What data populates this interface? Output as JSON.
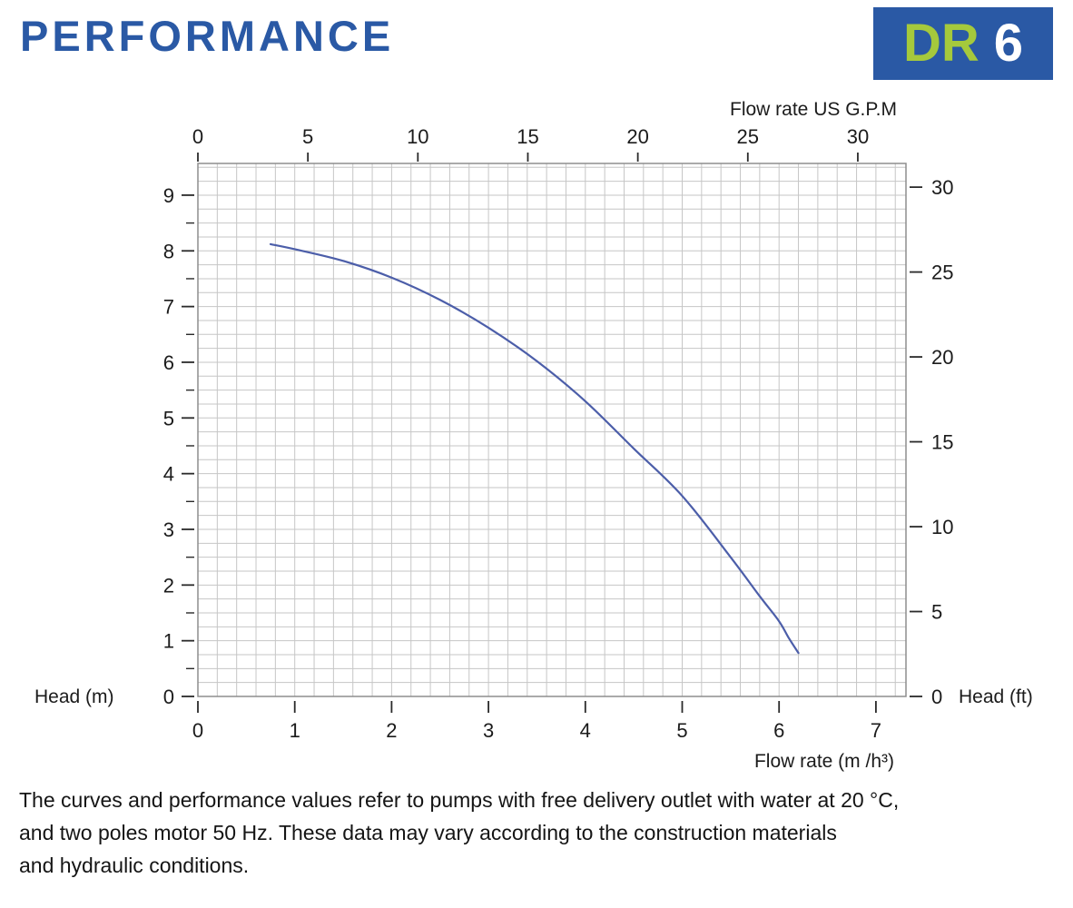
{
  "header": {
    "title": "PERFORMANCE",
    "badge": {
      "model_prefix": "DR",
      "model_number": "6"
    }
  },
  "colors": {
    "title_blue": "#2a59a5",
    "badge_bg": "#2a59a5",
    "badge_prefix_green": "#a5c93c",
    "badge_number_white": "#ffffff",
    "curve_blue": "#4c5ea9",
    "grid_line": "#c6c6c6",
    "plot_border": "#8d8d8d",
    "tick": "#2a2a2a",
    "axis_text": "#1b1b1b"
  },
  "chart_data": {
    "type": "line",
    "title": "PERFORMANCE",
    "grid": true,
    "top_axis": {
      "label": "Flow rate US  G.P.M",
      "unit": "US GPM",
      "ticks": [
        0,
        5,
        10,
        15,
        20,
        25,
        30
      ],
      "gpm_to_m3h": 0.2271
    },
    "bottom_axis": {
      "label": "Flow rate  (m /h³)",
      "unit": "m³/h",
      "ticks": [
        0,
        1,
        2,
        3,
        4,
        5,
        6,
        7
      ]
    },
    "left_axis": {
      "label": "Head (m)",
      "unit": "m",
      "ticks": [
        0,
        1,
        2,
        3,
        4,
        5,
        6,
        7,
        8,
        9
      ],
      "minor_tick_step": 0.5
    },
    "right_axis": {
      "label": "Head (ft)",
      "unit": "ft",
      "ticks": [
        0,
        5,
        10,
        15,
        20,
        25,
        30
      ],
      "ft_to_m": 0.3048
    },
    "xlim": [
      0,
      7.31
    ],
    "ylim": [
      0,
      9.57
    ],
    "series": [
      {
        "name": "DR 6 head vs flow curve",
        "color_key": "curve_blue",
        "points_m3h_m": [
          [
            0.75,
            8.12
          ],
          [
            1.0,
            8.03
          ],
          [
            1.5,
            7.82
          ],
          [
            2.0,
            7.52
          ],
          [
            2.5,
            7.12
          ],
          [
            3.0,
            6.62
          ],
          [
            3.5,
            6.02
          ],
          [
            4.0,
            5.3
          ],
          [
            4.5,
            4.45
          ],
          [
            5.0,
            3.6
          ],
          [
            5.5,
            2.5
          ],
          [
            5.8,
            1.8
          ],
          [
            6.0,
            1.35
          ],
          [
            6.1,
            1.05
          ],
          [
            6.2,
            0.78
          ]
        ]
      }
    ]
  },
  "footer": {
    "lines": [
      "The curves and performance values refer to pumps with free delivery outlet with water at 20 °C,",
      "and two poles motor 50 Hz. These data may vary according to the construction materials",
      "and hydraulic conditions."
    ]
  }
}
